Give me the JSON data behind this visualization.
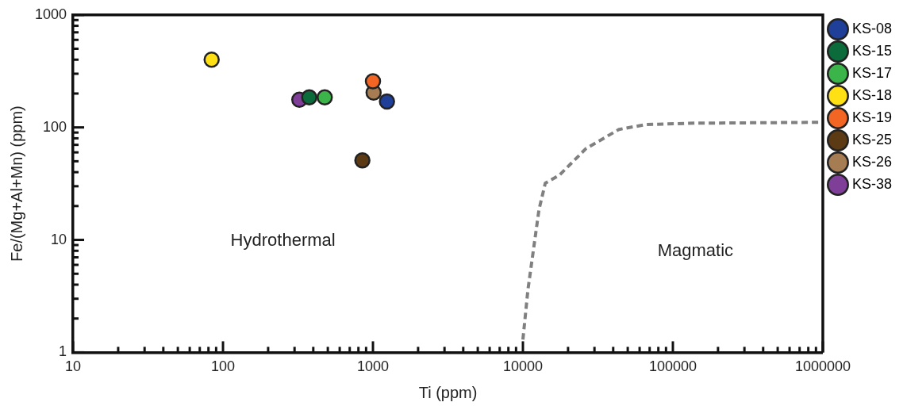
{
  "chart_data": {
    "type": "scatter",
    "xlabel": "Ti (ppm)",
    "ylabel": "Fe/(Mg+Al+Mn) (ppm)",
    "log": "xy",
    "xlim": [
      10,
      1000000
    ],
    "xticks": [
      10,
      100,
      1000,
      10000,
      100000,
      1000000
    ],
    "ylim": [
      1,
      1000
    ],
    "yticks": [
      1,
      10,
      100,
      1000
    ],
    "marker": "circle",
    "legend": "right",
    "grid": false,
    "annotations": [
      "Hydrothermal",
      "Magmatic"
    ],
    "series": [
      {
        "name": "KS-08",
        "color": "#1f3f99",
        "x": [
          1240
        ],
        "values": [
          170
        ]
      },
      {
        "name": "KS-15",
        "color": "#0b6b3a",
        "x": [
          376
        ],
        "values": [
          185
        ]
      },
      {
        "name": "KS-17",
        "color": "#3bb54a",
        "x": [
          477
        ],
        "values": [
          185
        ]
      },
      {
        "name": "KS-18",
        "color": "#ffe014",
        "x": [
          84
        ],
        "values": [
          400
        ]
      },
      {
        "name": "KS-19",
        "color": "#f26522",
        "x": [
          1000
        ],
        "values": [
          257
        ]
      },
      {
        "name": "KS-25",
        "color": "#5c3a14",
        "x": [
          850
        ],
        "values": [
          51
        ]
      },
      {
        "name": "KS-26",
        "color": "#a67c52",
        "x": [
          1010
        ],
        "values": [
          204
        ]
      },
      {
        "name": "KS-38",
        "color": "#7f3f98",
        "x": [
          323
        ],
        "values": [
          176
        ]
      },
      {
        "type": "line",
        "line_style": "dashed",
        "marker": "none",
        "color": "#808080",
        "x": [
          10000,
          10800,
          12800,
          14100,
          17500,
          26400,
          43700,
          66000,
          140000,
          1000000
        ],
        "values": [
          1.3,
          3.6,
          18.6,
          31.9,
          37.6,
          65,
          96,
          106,
          109,
          111
        ]
      }
    ]
  }
}
